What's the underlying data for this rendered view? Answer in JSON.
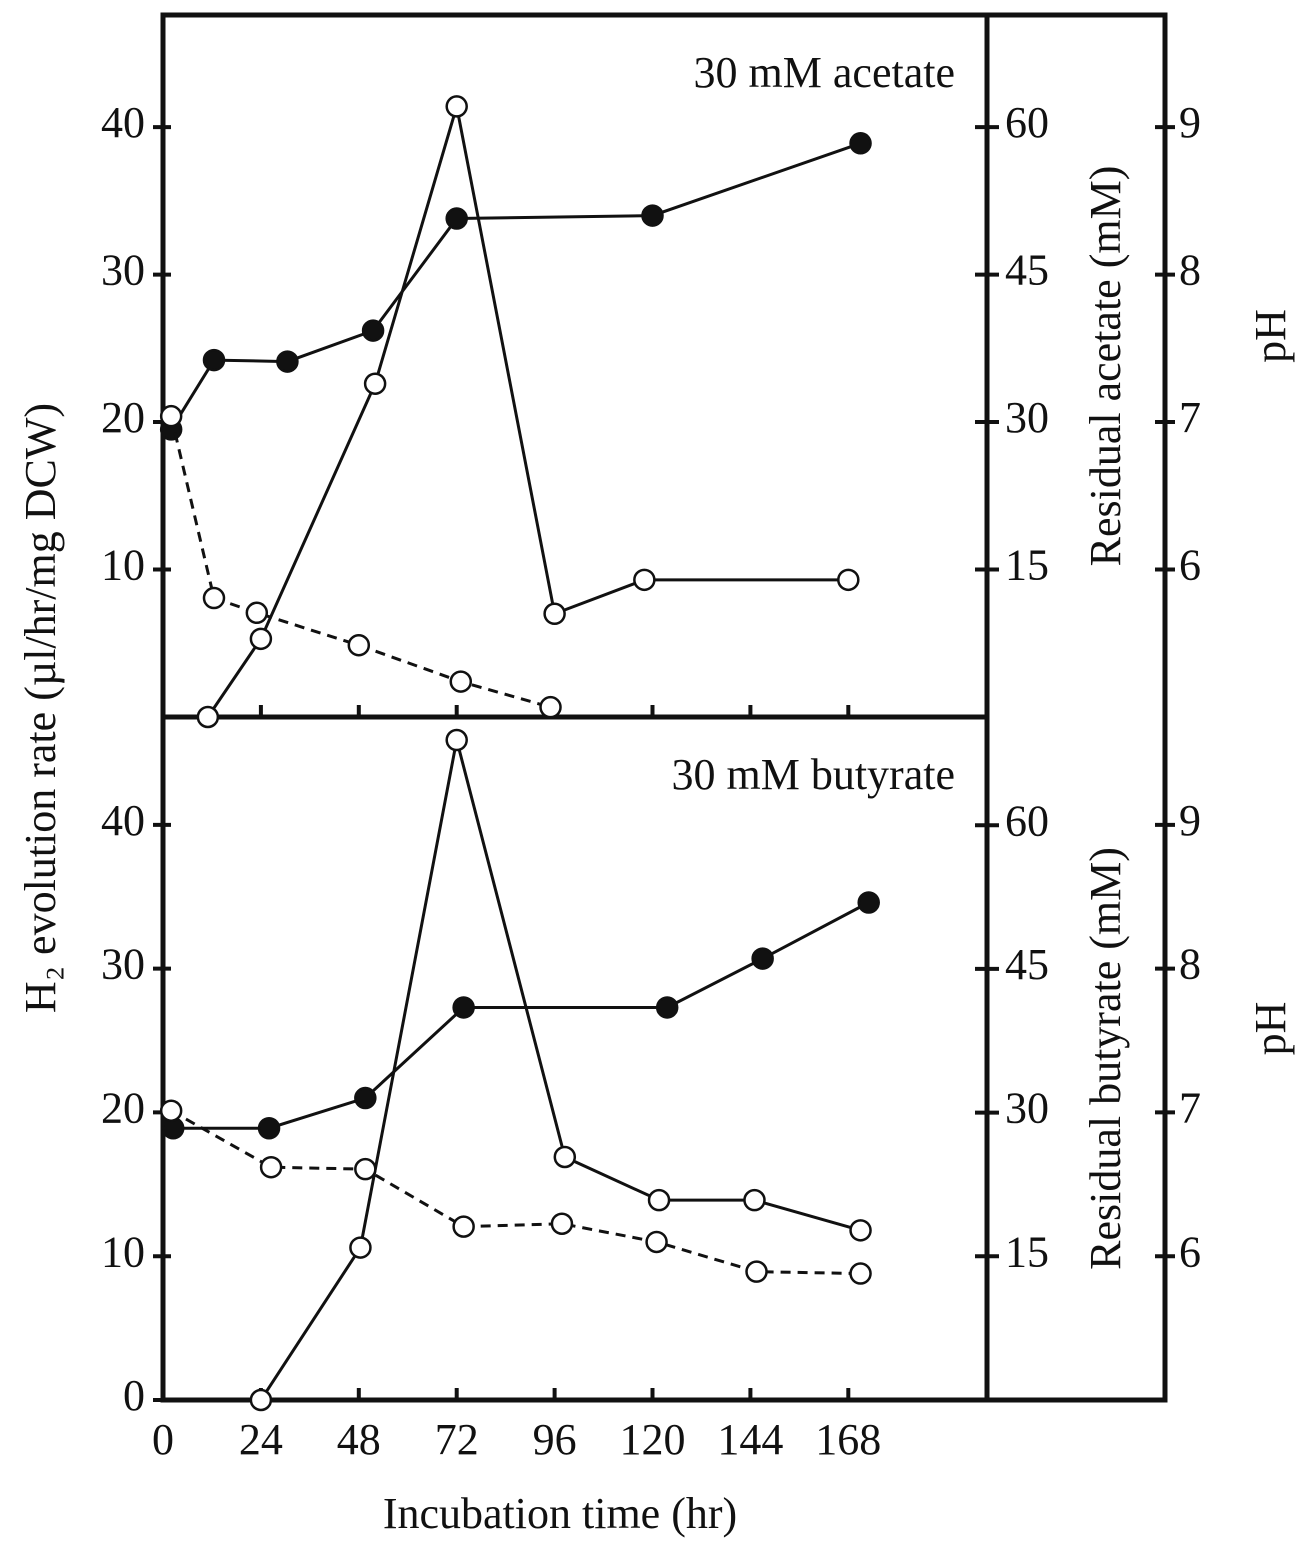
{
  "chart_data": [
    {
      "type": "line",
      "title": "30 mM  acetate",
      "y_label": "H₂ evolution rate (µl/hr/mg DCW)",
      "y2_label": "Residual acetate (mM)",
      "y3_label": "pH",
      "xlim": [
        0,
        202
      ],
      "xticks": [
        0,
        24,
        48,
        72,
        96,
        120,
        144,
        168
      ],
      "xtick_labels": false,
      "ylim": [
        0,
        47.6
      ],
      "yticks": [
        10,
        20,
        30,
        40
      ],
      "y2lim": [
        0,
        71.4
      ],
      "y2ticks": [
        15,
        30,
        45,
        60
      ],
      "y3lim": [
        5,
        9.76
      ],
      "y3ticks": [
        6,
        7,
        8,
        9
      ],
      "series": [
        {
          "axis": "y",
          "marker": "open",
          "line": "solid",
          "color": "#111111",
          "x": [
            11,
            24,
            52,
            72,
            96,
            118,
            168
          ],
          "values": [
            0,
            5.3,
            22.6,
            41.4,
            7.0,
            9.3,
            9.3
          ]
        },
        {
          "axis": "y3",
          "marker": "filled",
          "line": "solid",
          "color": "#111111",
          "x": [
            2,
            12.5,
            30.5,
            51.5,
            72,
            120,
            171
          ],
          "values": [
            6.95,
            7.42,
            7.41,
            7.62,
            8.38,
            8.4,
            8.89
          ]
        },
        {
          "axis": "y2",
          "marker": "open",
          "line": "dashed",
          "color": "#111111",
          "x": [
            2,
            12.5,
            23,
            48,
            73,
            95
          ],
          "values": [
            30.6,
            12.1,
            10.6,
            7.3,
            3.6,
            1.0
          ]
        }
      ]
    },
    {
      "type": "line",
      "title": "30 mM  butyrate",
      "x_label": "Incubation time (hr)",
      "y2_label": "Residual butyrate (mM)",
      "y3_label": "pH",
      "xlim": [
        0,
        202
      ],
      "xticks": [
        0,
        24,
        48,
        72,
        96,
        120,
        144,
        168
      ],
      "xtick_labels": true,
      "ylim": [
        0,
        47.5
      ],
      "yticks": [
        0,
        10,
        20,
        30,
        40
      ],
      "y2lim": [
        0,
        71.3
      ],
      "y2ticks": [
        15,
        30,
        45,
        60
      ],
      "y3lim": [
        5,
        9.75
      ],
      "y3ticks": [
        6,
        7,
        8,
        9
      ],
      "series": [
        {
          "axis": "y",
          "marker": "open",
          "line": "solid",
          "color": "#111111",
          "x": [
            24,
            48.4,
            72,
            98.5,
            121.6,
            145,
            171
          ],
          "values": [
            0,
            10.6,
            45.9,
            16.9,
            13.9,
            13.9,
            11.8
          ]
        },
        {
          "axis": "y3",
          "marker": "filled",
          "line": "solid",
          "color": "#111111",
          "x": [
            2.5,
            26,
            49.6,
            73.7,
            123.6,
            147,
            173
          ],
          "values": [
            6.89,
            6.89,
            7.1,
            7.73,
            7.73,
            8.07,
            8.46
          ]
        },
        {
          "axis": "y2",
          "marker": "open",
          "line": "dashed",
          "color": "#111111",
          "x": [
            2,
            26.5,
            49.6,
            73.7,
            97.8,
            121,
            145.5,
            171
          ],
          "values": [
            30.2,
            24.3,
            24.1,
            18.1,
            18.4,
            16.5,
            13.4,
            13.2
          ]
        }
      ]
    }
  ]
}
